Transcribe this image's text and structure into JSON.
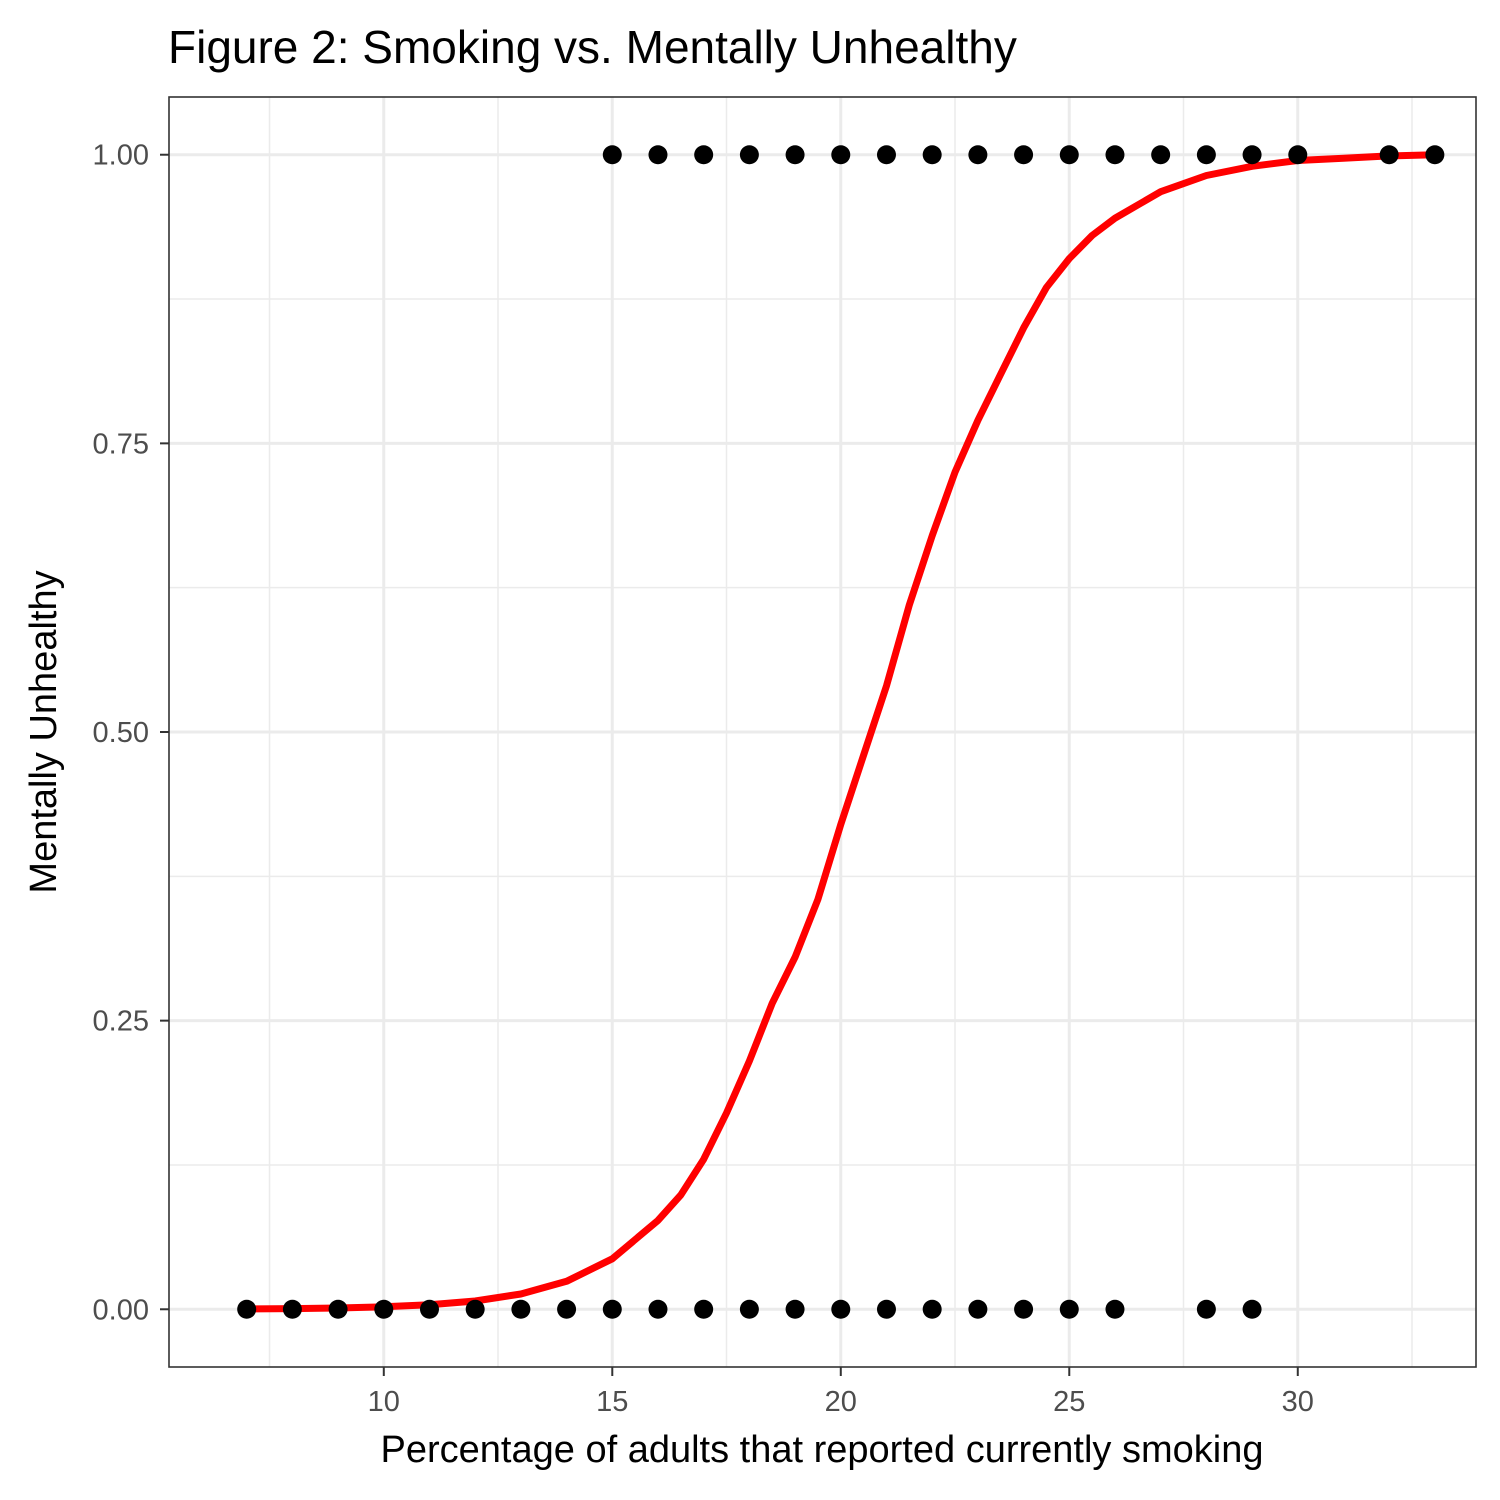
{
  "chart_data": {
    "type": "scatter",
    "title": "Figure 2: Smoking vs. Mentally Unhealthy",
    "xlabel": "Percentage of adults that reported currently smoking",
    "ylabel": "Mentally Unhealthy",
    "xlim": [
      5.3,
      33.9
    ],
    "ylim": [
      -0.05,
      1.05
    ],
    "x_ticks": [
      10,
      15,
      20,
      25,
      30
    ],
    "x_tick_labels": [
      "10",
      "15",
      "20",
      "25",
      "30"
    ],
    "x_minor_ticks": [
      7.5,
      12.5,
      17.5,
      22.5,
      27.5,
      32.5
    ],
    "y_ticks": [
      0,
      0.25,
      0.5,
      0.75,
      1
    ],
    "y_tick_labels": [
      "0.00",
      "0.25",
      "0.50",
      "0.75",
      "1.00"
    ],
    "y_minor_ticks": [
      0.125,
      0.375,
      0.625,
      0.875
    ],
    "grid": true,
    "series": [
      {
        "type": "scatter",
        "color": "#000000",
        "points": [
          {
            "x": 7,
            "y": 0
          },
          {
            "x": 8,
            "y": 0
          },
          {
            "x": 9,
            "y": 0
          },
          {
            "x": 10,
            "y": 0
          },
          {
            "x": 11,
            "y": 0
          },
          {
            "x": 12,
            "y": 0
          },
          {
            "x": 13,
            "y": 0
          },
          {
            "x": 14,
            "y": 0
          },
          {
            "x": 15,
            "y": 0
          },
          {
            "x": 16,
            "y": 0
          },
          {
            "x": 17,
            "y": 0
          },
          {
            "x": 18,
            "y": 0
          },
          {
            "x": 19,
            "y": 0
          },
          {
            "x": 20,
            "y": 0
          },
          {
            "x": 21,
            "y": 0
          },
          {
            "x": 22,
            "y": 0
          },
          {
            "x": 23,
            "y": 0
          },
          {
            "x": 24,
            "y": 0
          },
          {
            "x": 25,
            "y": 0
          },
          {
            "x": 26,
            "y": 0
          },
          {
            "x": 28,
            "y": 0
          },
          {
            "x": 29,
            "y": 0
          },
          {
            "x": 15,
            "y": 1
          },
          {
            "x": 16,
            "y": 1
          },
          {
            "x": 17,
            "y": 1
          },
          {
            "x": 18,
            "y": 1
          },
          {
            "x": 19,
            "y": 1
          },
          {
            "x": 20,
            "y": 1
          },
          {
            "x": 21,
            "y": 1
          },
          {
            "x": 22,
            "y": 1
          },
          {
            "x": 23,
            "y": 1
          },
          {
            "x": 24,
            "y": 1
          },
          {
            "x": 25,
            "y": 1
          },
          {
            "x": 26,
            "y": 1
          },
          {
            "x": 27,
            "y": 1
          },
          {
            "x": 28,
            "y": 1
          },
          {
            "x": 29,
            "y": 1
          },
          {
            "x": 30,
            "y": 1
          },
          {
            "x": 32,
            "y": 1
          },
          {
            "x": 33,
            "y": 1
          }
        ]
      },
      {
        "type": "line",
        "color": "#ff0000",
        "x": [
          7,
          8,
          9,
          10,
          11,
          12,
          13,
          14,
          15,
          16,
          16.5,
          17,
          17.5,
          18,
          18.5,
          19,
          19.5,
          20,
          20.5,
          21,
          21.5,
          22,
          22.5,
          23,
          23.5,
          24,
          24.5,
          25,
          25.5,
          26,
          27,
          28,
          29,
          30,
          31,
          32,
          33
        ],
        "y": [
          0.0003,
          0.0006,
          0.0011,
          0.0021,
          0.0039,
          0.0072,
          0.0132,
          0.0242,
          0.0437,
          0.077,
          0.099,
          0.13,
          0.17,
          0.215,
          0.265,
          0.305,
          0.355,
          0.42,
          0.48,
          0.54,
          0.61,
          0.67,
          0.725,
          0.77,
          0.81,
          0.85,
          0.885,
          0.91,
          0.93,
          0.945,
          0.968,
          0.982,
          0.99,
          0.995,
          0.997,
          0.999,
          1.0
        ]
      }
    ]
  }
}
